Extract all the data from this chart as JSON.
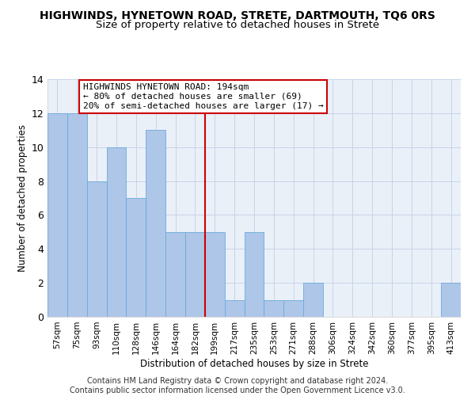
{
  "title": "HIGHWINDS, HYNETOWN ROAD, STRETE, DARTMOUTH, TQ6 0RS",
  "subtitle": "Size of property relative to detached houses in Strete",
  "xlabel": "Distribution of detached houses by size in Strete",
  "ylabel": "Number of detached properties",
  "categories": [
    "57sqm",
    "75sqm",
    "93sqm",
    "110sqm",
    "128sqm",
    "146sqm",
    "164sqm",
    "182sqm",
    "199sqm",
    "217sqm",
    "235sqm",
    "253sqm",
    "271sqm",
    "288sqm",
    "306sqm",
    "324sqm",
    "342sqm",
    "360sqm",
    "377sqm",
    "395sqm",
    "413sqm"
  ],
  "values": [
    12,
    12,
    8,
    10,
    7,
    11,
    5,
    5,
    5,
    1,
    5,
    1,
    1,
    2,
    0,
    0,
    0,
    0,
    0,
    0,
    2
  ],
  "bar_color": "#aec6e8",
  "bar_edge_color": "#6aabdb",
  "vline_color": "#cc0000",
  "vline_pos": 7.5,
  "annotation_text": "HIGHWINDS HYNETOWN ROAD: 194sqm\n← 80% of detached houses are smaller (69)\n20% of semi-detached houses are larger (17) →",
  "annotation_box_color": "#ffffff",
  "annotation_box_edge_color": "#cc0000",
  "ylim": [
    0,
    14
  ],
  "yticks": [
    0,
    2,
    4,
    6,
    8,
    10,
    12,
    14
  ],
  "grid_color": "#c8d4e8",
  "footnote": "Contains HM Land Registry data © Crown copyright and database right 2024.\nContains public sector information licensed under the Open Government Licence v3.0.",
  "bg_color": "#eaf0f8",
  "title_fontsize": 10,
  "subtitle_fontsize": 9.5,
  "axis_label_fontsize": 8.5,
  "tick_fontsize": 7.5,
  "annotation_fontsize": 8,
  "footnote_fontsize": 7
}
